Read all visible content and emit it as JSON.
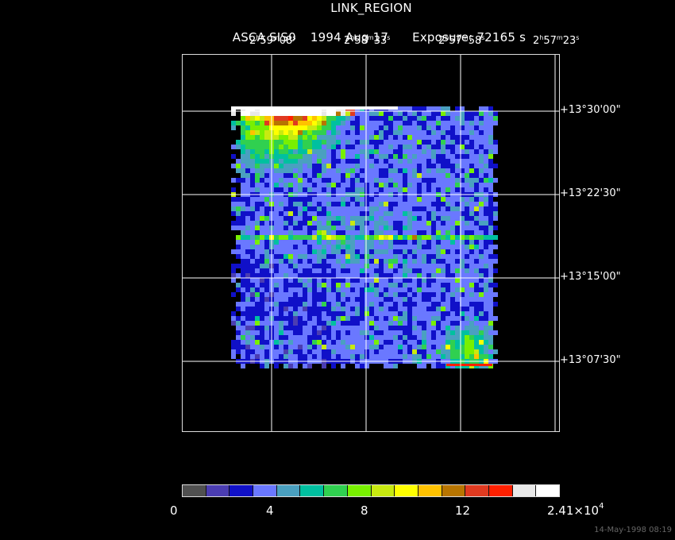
{
  "title": {
    "main": "LINK_REGION",
    "instrument": "ASCA SIS0",
    "date": "1994 Aug 17",
    "exposure": "Exposure: 72165 s"
  },
  "axes": {
    "ra": [
      {
        "h": "2",
        "m": "59",
        "s": "08"
      },
      {
        "h": "2",
        "m": "58",
        "s": "33"
      },
      {
        "h": "2",
        "m": "57",
        "s": "58"
      },
      {
        "h": "2",
        "m": "57",
        "s": "23"
      }
    ],
    "dec": [
      "+13°30'00\"",
      "+13°22'30\"",
      "+13°15'00\"",
      "+13°07'30\""
    ]
  },
  "colorbar": {
    "labels": [
      "0",
      "4",
      "8",
      "12"
    ],
    "max_mantissa": "2.41",
    "max_exponent": "4",
    "max_separator": "×10",
    "colors": [
      "#505050",
      "#4b3db2",
      "#1010c8",
      "#6a78ff",
      "#4aa0c0",
      "#00c0a0",
      "#30d050",
      "#78f000",
      "#c8ea10",
      "#ffff00",
      "#ffc200",
      "#b87500",
      "#e03a20",
      "#ff2000",
      "#e8e8e8",
      "#ffffff"
    ]
  },
  "footer": {
    "timestamp": "14-May-1998 08:19"
  }
}
